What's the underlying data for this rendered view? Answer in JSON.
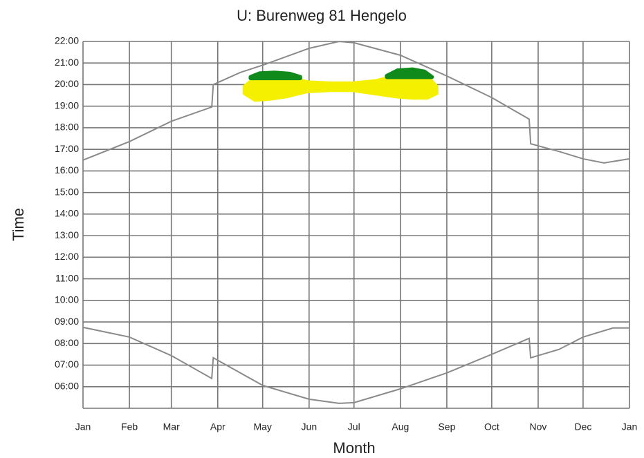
{
  "chart_data": {
    "type": "line",
    "title": "U: Burenweg 81 Hengelo",
    "xlabel": "Month",
    "ylabel": "Time",
    "xlim": [
      0,
      365
    ],
    "ylim": [
      5,
      22
    ],
    "grid": true,
    "xticks": [
      {
        "value": 0,
        "label": "Jan"
      },
      {
        "value": 31,
        "label": "Feb"
      },
      {
        "value": 59,
        "label": "Mar"
      },
      {
        "value": 90,
        "label": "Apr"
      },
      {
        "value": 120,
        "label": "May"
      },
      {
        "value": 151,
        "label": "Jun"
      },
      {
        "value": 181,
        "label": "Jul"
      },
      {
        "value": 212,
        "label": "Aug"
      },
      {
        "value": 243,
        "label": "Sep"
      },
      {
        "value": 273,
        "label": "Oct"
      },
      {
        "value": 304,
        "label": "Nov"
      },
      {
        "value": 334,
        "label": "Dec"
      },
      {
        "value": 365,
        "label": "Jan"
      }
    ],
    "yticks": [
      {
        "value": 6,
        "label": "06:00"
      },
      {
        "value": 7,
        "label": "07:00"
      },
      {
        "value": 8,
        "label": "08:00"
      },
      {
        "value": 9,
        "label": "09:00"
      },
      {
        "value": 10,
        "label": "10:00"
      },
      {
        "value": 11,
        "label": "11:00"
      },
      {
        "value": 12,
        "label": "12:00"
      },
      {
        "value": 13,
        "label": "13:00"
      },
      {
        "value": 14,
        "label": "14:00"
      },
      {
        "value": 15,
        "label": "15:00"
      },
      {
        "value": 16,
        "label": "16:00"
      },
      {
        "value": 17,
        "label": "17:00"
      },
      {
        "value": 18,
        "label": "18:00"
      },
      {
        "value": 19,
        "label": "19:00"
      },
      {
        "value": 20,
        "label": "20:00"
      },
      {
        "value": 21,
        "label": "21:00"
      },
      {
        "value": 22,
        "label": "22:00"
      }
    ],
    "series": [
      {
        "color": "#8a8a8a",
        "x": [
          0,
          31,
          59,
          86,
          87,
          105,
          120,
          151,
          171,
          181,
          212,
          243,
          273,
          298,
          299,
          318,
          334,
          348,
          365
        ],
        "values": [
          16.5,
          17.36,
          18.3,
          18.96,
          20.0,
          20.56,
          20.9,
          21.68,
          22.0,
          21.94,
          21.36,
          20.4,
          19.4,
          18.4,
          17.26,
          16.9,
          16.56,
          16.37,
          16.56
        ]
      },
      {
        "color": "#8a8a8a",
        "x": [
          0,
          31,
          59,
          86,
          87,
          120,
          151,
          171,
          181,
          212,
          243,
          273,
          298,
          299,
          318,
          334,
          354,
          365
        ],
        "values": [
          8.75,
          8.3,
          7.44,
          6.38,
          7.34,
          6.06,
          5.42,
          5.23,
          5.26,
          5.9,
          6.64,
          7.5,
          8.24,
          7.34,
          7.73,
          8.3,
          8.72,
          8.72
        ]
      }
    ],
    "areas": [
      {
        "color": "#f5f000",
        "x": [
          108,
          115,
          125,
          135,
          150,
          165,
          180,
          195,
          210,
          220,
          230,
          236
        ],
        "high": [
          19.9,
          20.3,
          20.4,
          20.35,
          20.1,
          20.05,
          20.05,
          20.15,
          20.4,
          20.45,
          20.35,
          19.9
        ],
        "low": [
          19.6,
          19.3,
          19.35,
          19.45,
          19.7,
          19.75,
          19.75,
          19.6,
          19.45,
          19.4,
          19.4,
          19.6
        ]
      },
      {
        "color": "#108a1a",
        "x": [
          112,
          118,
          128,
          138,
          145
        ],
        "high": [
          20.35,
          20.52,
          20.55,
          20.5,
          20.35
        ],
        "low": [
          20.3,
          20.3,
          20.3,
          20.3,
          20.3
        ]
      },
      {
        "color": "#108a1a",
        "x": [
          203,
          210,
          220,
          228,
          233
        ],
        "high": [
          20.4,
          20.65,
          20.7,
          20.6,
          20.35
        ],
        "low": [
          20.35,
          20.35,
          20.35,
          20.35,
          20.35
        ]
      }
    ]
  }
}
